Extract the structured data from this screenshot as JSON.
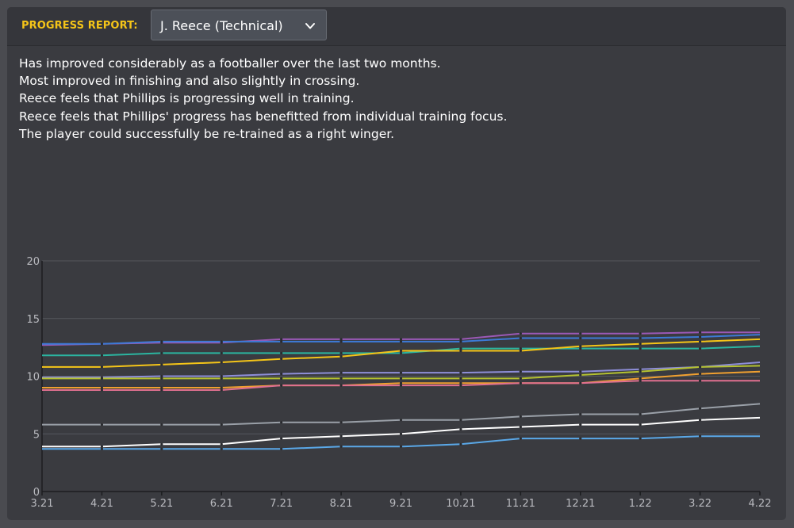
{
  "header": {
    "label": "PROGRESS REPORT:",
    "selected": "J. Reece (Technical)",
    "dropdown_icon": "chevron-down-icon"
  },
  "report_lines": [
    "Has improved considerably as a footballer over the last two months.",
    "Most improved in finishing and also slightly in crossing.",
    "Reece feels that Phillips is progressing well in training.",
    "Reece feels that Phillips' progress has benefitted from individual training focus.",
    "The player could successfully be re-trained as a right winger."
  ],
  "colors": {
    "accent": "#f5c518",
    "panel_bg": "#3a3b40",
    "header_bg": "#35363b",
    "text": "#ffffff"
  },
  "chart_data": {
    "type": "line",
    "categories": [
      "3.21",
      "4.21",
      "5.21",
      "6.21",
      "7.21",
      "8.21",
      "9.21",
      "10.21",
      "11.21",
      "12.21",
      "1.22",
      "3.22",
      "4.22"
    ],
    "ylim": [
      0,
      20
    ],
    "yticks": [
      "0",
      "5",
      "10",
      "15",
      "20"
    ],
    "grid": true,
    "series": [
      {
        "color": "#9b59b6",
        "values": [
          12.7,
          12.8,
          12.9,
          12.9,
          13.2,
          13.2,
          13.2,
          13.2,
          13.7,
          13.7,
          13.7,
          13.8,
          13.8
        ]
      },
      {
        "color": "#3d7ad6",
        "values": [
          12.8,
          12.8,
          13.0,
          13.0,
          13.0,
          13.0,
          13.0,
          13.0,
          13.3,
          13.3,
          13.3,
          13.4,
          13.6
        ]
      },
      {
        "color": "#2bb5a0",
        "values": [
          11.8,
          11.8,
          12.0,
          12.0,
          12.0,
          12.0,
          12.0,
          12.4,
          12.4,
          12.4,
          12.4,
          12.4,
          12.6
        ]
      },
      {
        "color": "#f5c518",
        "values": [
          10.8,
          10.8,
          11.0,
          11.2,
          11.5,
          11.7,
          12.2,
          12.2,
          12.2,
          12.6,
          12.8,
          13.0,
          13.2
        ]
      },
      {
        "color": "#8e8ed8",
        "values": [
          9.9,
          9.9,
          10.0,
          10.0,
          10.2,
          10.3,
          10.3,
          10.3,
          10.4,
          10.4,
          10.6,
          10.8,
          11.2
        ]
      },
      {
        "color": "#b5c230",
        "values": [
          9.8,
          9.8,
          9.8,
          9.8,
          9.8,
          9.8,
          9.8,
          9.8,
          9.8,
          10.1,
          10.4,
          10.8,
          10.9
        ]
      },
      {
        "color": "#f0a030",
        "values": [
          9.0,
          9.0,
          9.0,
          9.0,
          9.2,
          9.2,
          9.4,
          9.4,
          9.4,
          9.4,
          9.8,
          10.2,
          10.4
        ]
      },
      {
        "color": "#e07090",
        "values": [
          8.8,
          8.8,
          8.8,
          8.8,
          9.2,
          9.2,
          9.2,
          9.2,
          9.4,
          9.4,
          9.6,
          9.6,
          9.6
        ]
      },
      {
        "color": "#9aa0a8",
        "values": [
          5.8,
          5.8,
          5.8,
          5.8,
          6.0,
          6.0,
          6.2,
          6.2,
          6.5,
          6.7,
          6.7,
          7.2,
          7.6
        ]
      },
      {
        "color": "#ffffff",
        "values": [
          3.9,
          3.9,
          4.1,
          4.1,
          4.6,
          4.8,
          5.0,
          5.4,
          5.6,
          5.8,
          5.8,
          6.2,
          6.4
        ]
      },
      {
        "color": "#5aa8e8",
        "values": [
          3.7,
          3.7,
          3.7,
          3.7,
          3.7,
          3.9,
          3.9,
          4.1,
          4.6,
          4.6,
          4.6,
          4.8,
          4.8
        ]
      }
    ]
  }
}
